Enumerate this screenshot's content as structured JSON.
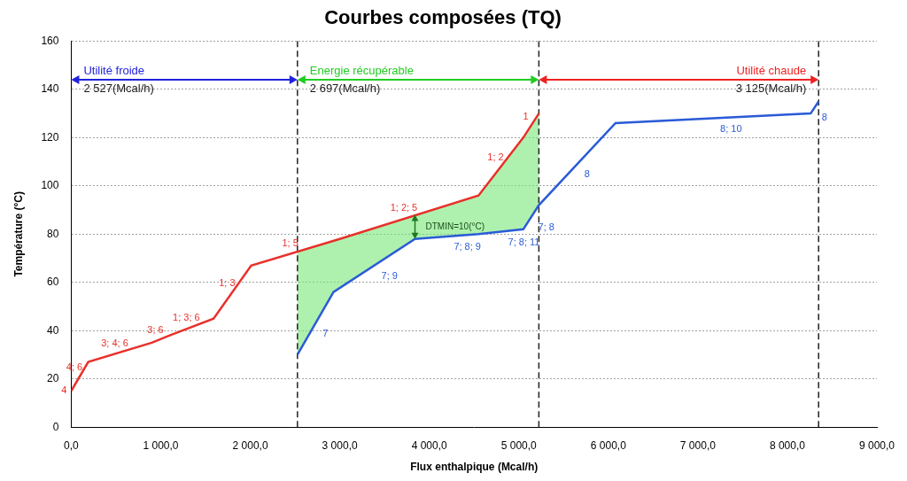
{
  "chart_data": {
    "type": "line",
    "title": "Courbes composées (TQ)",
    "x_label": "Flux enthalpique (Mcal/h)",
    "y_label": "Température (°C)",
    "xlim": [
      0,
      9000
    ],
    "xticks": [
      {
        "value": 0,
        "label": "0,0"
      },
      {
        "value": 1000,
        "label": "1 000,0"
      },
      {
        "value": 2000,
        "label": "2 000,0"
      },
      {
        "value": 3000,
        "label": "3 000,0"
      },
      {
        "value": 4000,
        "label": "4 000,0"
      },
      {
        "value": 5000,
        "label": "5 000,0"
      },
      {
        "value": 6000,
        "label": "6 000,0"
      },
      {
        "value": 7000,
        "label": "7 000,0"
      },
      {
        "value": 8000,
        "label": "8 000,0"
      },
      {
        "value": 9000,
        "label": "9 000,0"
      }
    ],
    "ylim": [
      0,
      160
    ],
    "yticks": [
      0,
      20,
      40,
      60,
      80,
      100,
      120,
      140,
      160
    ],
    "grid": true,
    "series": [
      {
        "color": "#e8302a",
        "x": [
          0,
          190,
          900,
          1100,
          1590,
          2010,
          3000,
          4550,
          5050,
          5224
        ],
        "values": [
          15,
          27,
          35,
          38,
          45,
          67,
          78,
          96,
          120,
          130
        ],
        "start_label": "4",
        "segment_labels": [
          "4; 6",
          "3; 4; 6",
          "3; 6",
          "1; 3; 6",
          "1; 3",
          "1; 5",
          "1; 2; 5",
          "1; 2",
          "1"
        ]
      },
      {
        "color": "#2a5bd7",
        "x": [
          2527,
          2930,
          3840,
          4550,
          5050,
          5224,
          6080,
          8260,
          8349
        ],
        "values": [
          30,
          56,
          78,
          80,
          82,
          92,
          126,
          130,
          135
        ],
        "segment_labels": [
          "7",
          "7; 9",
          "7; 8; 9",
          "7; 8; 11",
          "7; 8",
          "8",
          "8; 10",
          "8"
        ]
      }
    ],
    "spans": [
      {
        "label": "Utilité froide",
        "from": 0,
        "to": 2527,
        "value_label": "2 527(Mcal/h)",
        "color": "#2222dd"
      },
      {
        "label": "Energie récupérable",
        "from": 2527,
        "to": 5224,
        "value_label": "2 697(Mcal/h)",
        "color": "#22cc22"
      },
      {
        "label": "Utilité chaude",
        "from": 5224,
        "to": 8349,
        "value_label": "3 125(Mcal/h)",
        "color": "#ee2222"
      }
    ],
    "dtmin": {
      "x": 3840,
      "value": 10,
      "label": "DTMIN=10(°C)"
    }
  }
}
